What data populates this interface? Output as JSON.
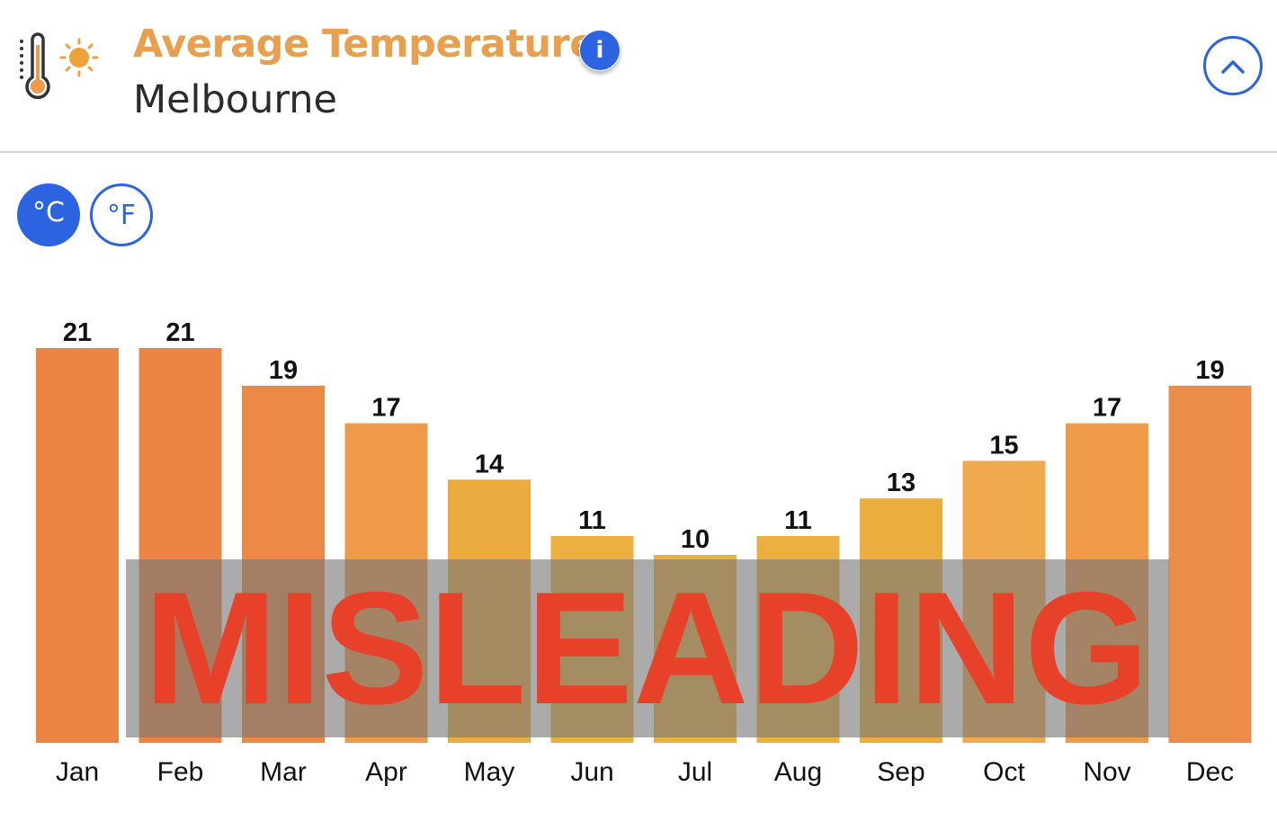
{
  "header": {
    "title": "Average Temperature",
    "subtitle": "Melbourne",
    "icon": "thermometer-sun-icon",
    "info_label": "i",
    "collapse_icon": "chevron-up-icon"
  },
  "units": {
    "celsius": "°C",
    "fahrenheit": "°F",
    "selected": "celsius"
  },
  "colors": {
    "accent": "#2c63e0",
    "title": "#e8a04e",
    "stamp_text": "#e8412a"
  },
  "stamp": {
    "text": "MISLEADING"
  },
  "chart_data": {
    "type": "bar",
    "title": "Average Temperature",
    "subtitle": "Melbourne",
    "categories": [
      "Jan",
      "Feb",
      "Mar",
      "Apr",
      "May",
      "Jun",
      "Jul",
      "Aug",
      "Sep",
      "Oct",
      "Nov",
      "Dec"
    ],
    "values": [
      21,
      21,
      19,
      17,
      14,
      11,
      10,
      11,
      13,
      15,
      17,
      19
    ],
    "unit": "°C",
    "ylim": [
      0,
      21
    ],
    "grid": false,
    "data_labels": true,
    "bar_colors": [
      "#ec8446",
      "#ec8446",
      "#ed8946",
      "#ef9a48",
      "#ecab3e",
      "#ecb040",
      "#ecb040",
      "#ecb040",
      "#ecad3f",
      "#f0a94c",
      "#ef9a48",
      "#ec8c4a"
    ]
  }
}
